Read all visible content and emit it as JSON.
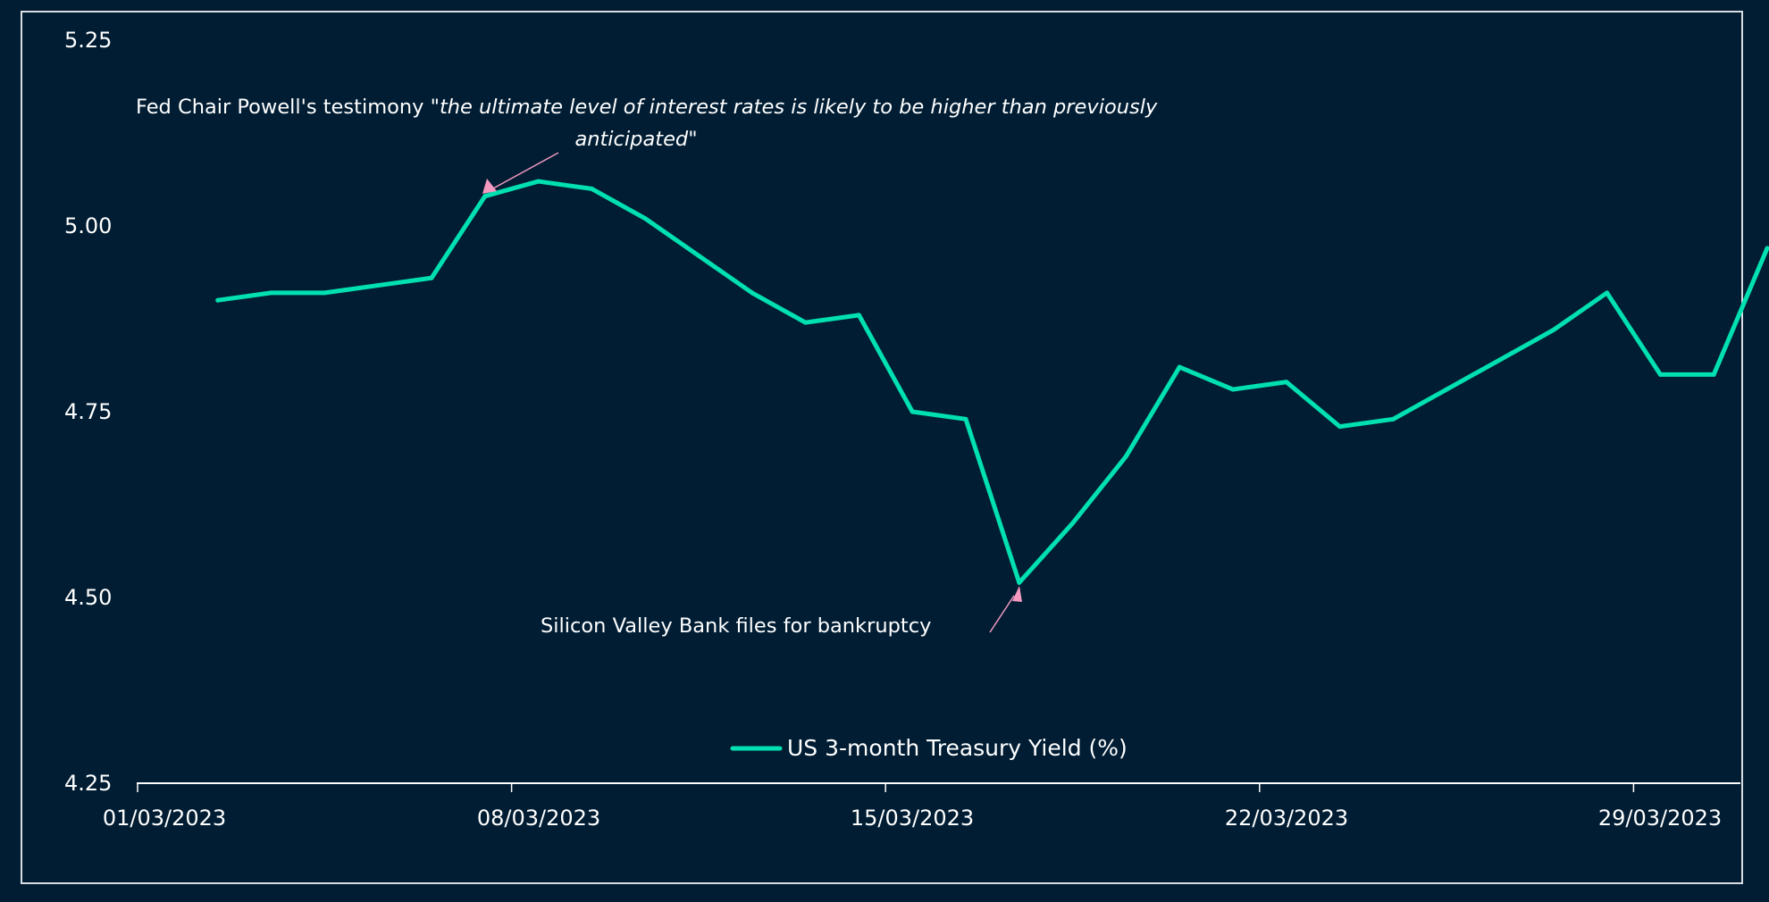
{
  "chart_data": {
    "type": "line",
    "title": "",
    "xlabel": "",
    "ylabel": "",
    "ylim": [
      4.25,
      5.25
    ],
    "yticks": [
      "5.25",
      "5.00",
      "4.75",
      "4.50",
      "4.25"
    ],
    "xticks": [
      "01/03/2023",
      "08/03/2023",
      "15/03/2023",
      "22/03/2023",
      "29/03/2023"
    ],
    "xlim": [
      "2023-03-01",
      "2023-03-31"
    ],
    "grid": false,
    "legend_position": "bottom-center",
    "series": [
      {
        "name": "US 3-month Treasury Yield (%)",
        "color": "#00e0b0",
        "x": [
          "2023-03-02",
          "2023-03-03",
          "2023-03-04",
          "2023-03-05",
          "2023-03-06",
          "2023-03-07",
          "2023-03-08",
          "2023-03-09",
          "2023-03-10",
          "2023-03-11",
          "2023-03-12",
          "2023-03-13",
          "2023-03-14",
          "2023-03-15",
          "2023-03-16",
          "2023-03-17",
          "2023-03-18",
          "2023-03-19",
          "2023-03-20",
          "2023-03-21",
          "2023-03-22",
          "2023-03-23",
          "2023-03-24",
          "2023-03-25",
          "2023-03-26",
          "2023-03-27",
          "2023-03-28",
          "2023-03-29",
          "2023-03-30",
          "2023-03-31"
        ],
        "values": [
          4.9,
          4.91,
          4.91,
          4.92,
          4.93,
          5.04,
          5.06,
          5.05,
          5.01,
          4.96,
          4.91,
          4.87,
          4.88,
          4.75,
          4.74,
          4.52,
          4.6,
          4.69,
          4.81,
          4.78,
          4.79,
          4.73,
          4.74,
          4.78,
          4.82,
          4.86,
          4.91,
          4.8,
          4.8,
          4.97
        ]
      }
    ],
    "annotations": [
      {
        "name": "powell",
        "text_prefix": "Fed Chair Powell's testimony \"",
        "text_quote_line1": "the ultimate level of interest rates is likely to be higher than previously",
        "text_quote_line2": "anticipated",
        "text_suffix": "\"",
        "point": {
          "x": "2023-03-07",
          "y": 5.04
        },
        "color": "#f49ac1"
      },
      {
        "name": "svb",
        "text": "Silicon Valley Bank files for bankruptcy",
        "point": {
          "x": "2023-03-17",
          "y": 4.52
        },
        "color": "#f49ac1"
      }
    ],
    "colors": {
      "background": "#001d33",
      "axis": "#ffffff",
      "frame": "#d9dde2"
    }
  }
}
